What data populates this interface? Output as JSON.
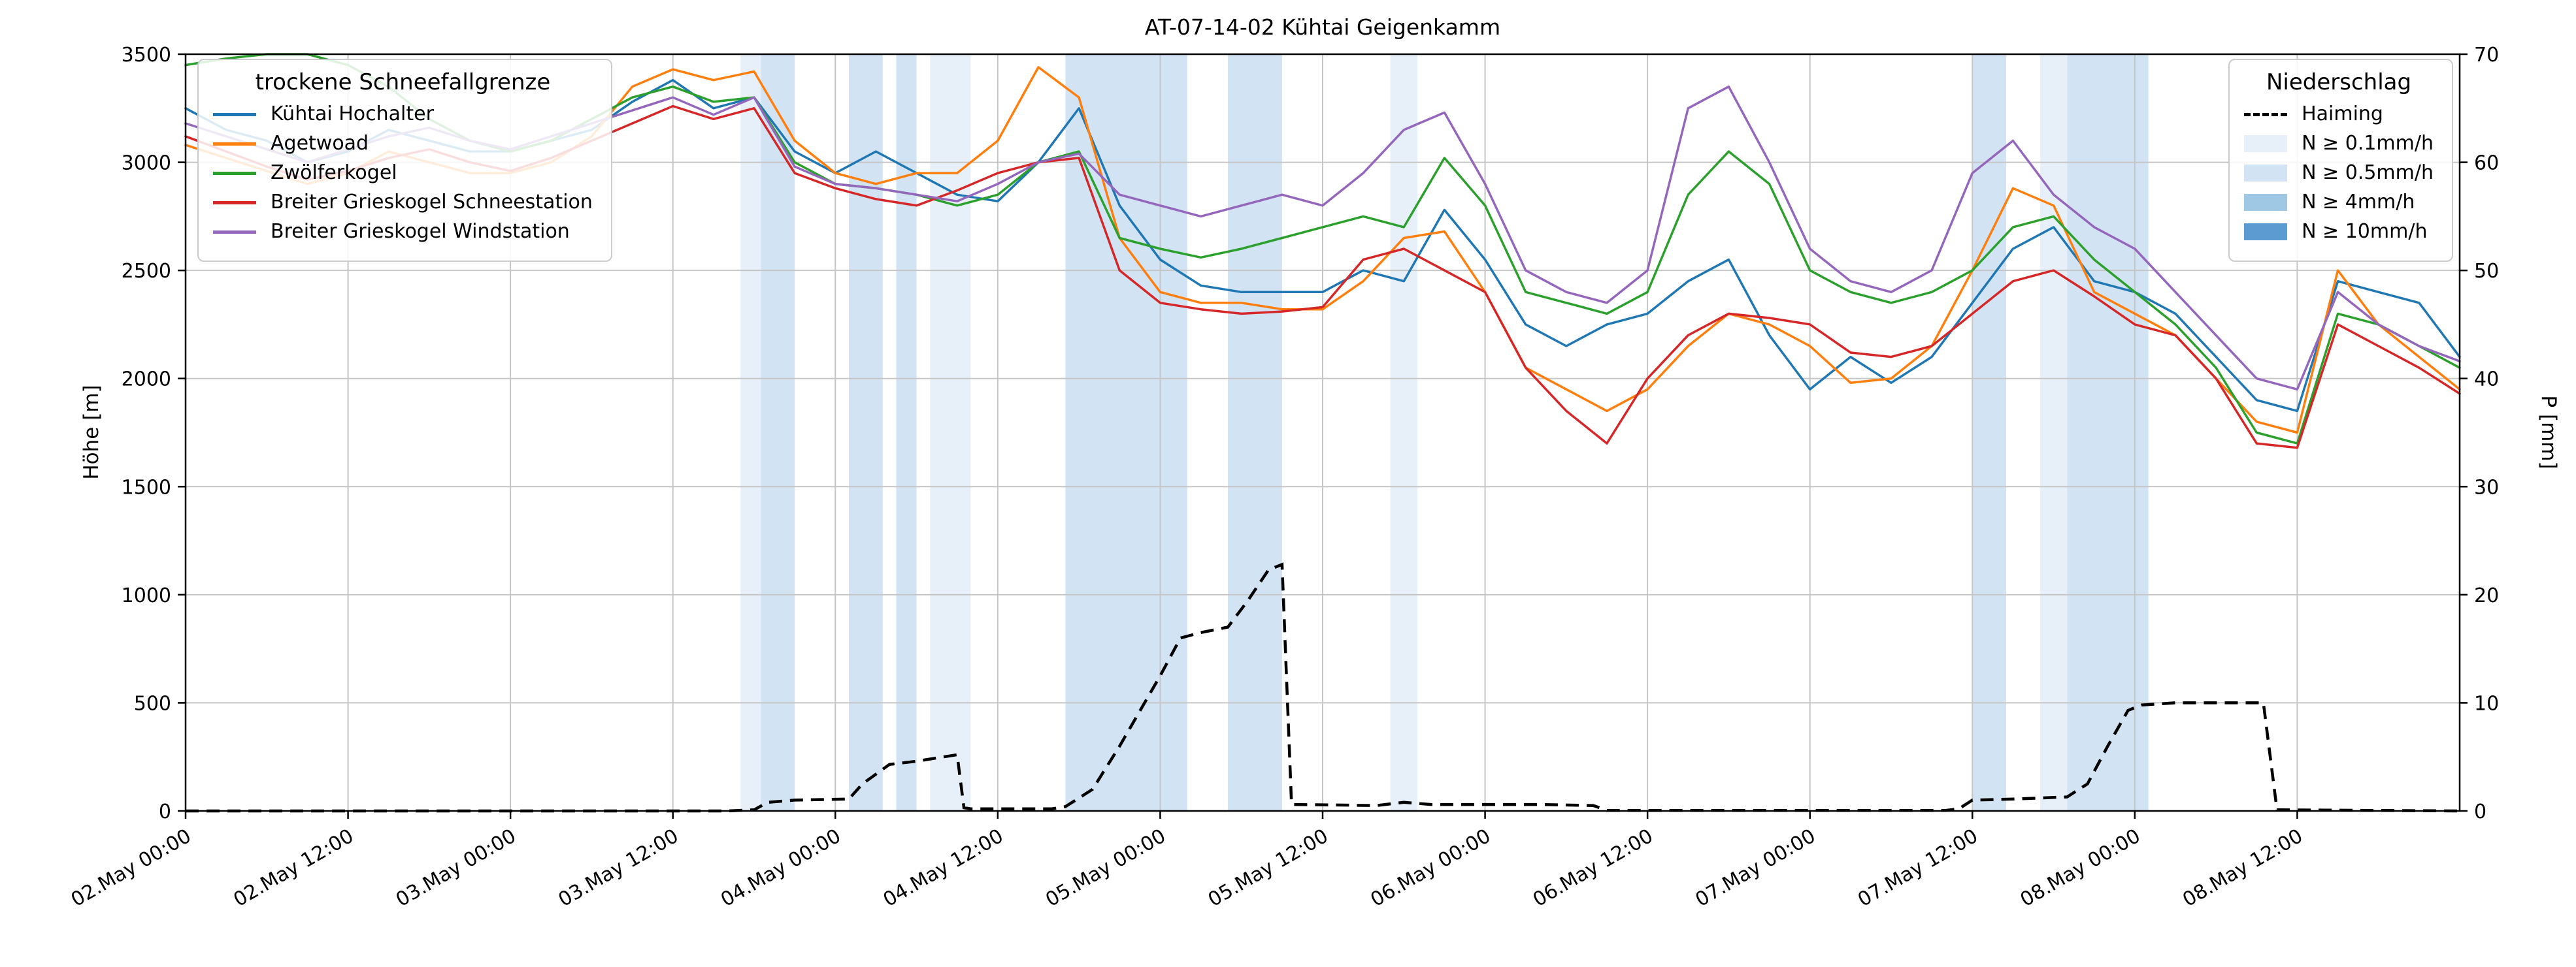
{
  "chart_data": {
    "type": "line",
    "title": "AT-07-14-02 Kühtai Geigenkamm",
    "ylabel_left": "Höhe [m]",
    "ylabel_right": "P [mm]",
    "x_origin": "02.May 00:00",
    "x_unit": "hours",
    "x_range_hours": [
      0,
      168
    ],
    "x_step_hours": 3,
    "ylim_left": [
      0,
      3500
    ],
    "ylim_right": [
      0,
      70
    ],
    "y_left_ticks": [
      0,
      500,
      1000,
      1500,
      2000,
      2500,
      3000,
      3500
    ],
    "y_right_ticks": [
      0,
      10,
      20,
      30,
      40,
      50,
      60,
      70
    ],
    "x_ticks_hours": [
      0,
      12,
      24,
      36,
      48,
      60,
      72,
      84,
      96,
      108,
      120,
      132,
      144,
      156
    ],
    "x_tick_labels": [
      "02.May 00:00",
      "02.May 12:00",
      "03.May 00:00",
      "03.May 12:00",
      "04.May 00:00",
      "04.May 12:00",
      "05.May 00:00",
      "05.May 12:00",
      "06.May 00:00",
      "06.May 12:00",
      "07.May 00:00",
      "07.May 12:00",
      "08.May 00:00",
      "08.May 12:00"
    ],
    "series": [
      {
        "name": "Kühtai Hochalter",
        "color": "#1f77b4",
        "values": [
          3250,
          3150,
          3100,
          3000,
          3050,
          3150,
          3100,
          3050,
          3050,
          3100,
          3150,
          3280,
          3380,
          3250,
          3300,
          3050,
          2950,
          3050,
          2950,
          2850,
          2820,
          3000,
          3250,
          2800,
          2550,
          2430,
          2400,
          2400,
          2400,
          2500,
          2450,
          2780,
          2550,
          2250,
          2150,
          2250,
          2300,
          2450,
          2550,
          2200,
          1950,
          2100,
          1980,
          2100,
          2350,
          2600,
          2700,
          2450,
          2400,
          2300,
          2100,
          1900,
          1850,
          2450,
          2400,
          2350,
          2100
        ]
      },
      {
        "name": "Agetwoad",
        "color": "#ff7f0e",
        "values": [
          3080,
          3020,
          2960,
          2900,
          2950,
          3050,
          3000,
          2950,
          2950,
          3000,
          3120,
          3350,
          3430,
          3380,
          3420,
          3100,
          2950,
          2900,
          2950,
          2950,
          3100,
          3440,
          3300,
          2650,
          2400,
          2350,
          2350,
          2320,
          2320,
          2450,
          2650,
          2680,
          2400,
          2050,
          1950,
          1850,
          1950,
          2150,
          2300,
          2250,
          2150,
          1980,
          2000,
          2150,
          2500,
          2880,
          2800,
          2400,
          2300,
          2200,
          2000,
          1800,
          1750,
          2500,
          2250,
          2100,
          1950
        ]
      },
      {
        "name": "Zwölferkogel",
        "color": "#2ca02c",
        "values": [
          3450,
          3480,
          3500,
          3500,
          3450,
          3350,
          3200,
          3100,
          3050,
          3100,
          3200,
          3300,
          3350,
          3280,
          3300,
          3000,
          2900,
          2880,
          2850,
          2800,
          2850,
          3000,
          3050,
          2650,
          2600,
          2560,
          2600,
          2650,
          2700,
          2750,
          2700,
          3020,
          2800,
          2400,
          2350,
          2300,
          2400,
          2850,
          3050,
          2900,
          2500,
          2400,
          2350,
          2400,
          2500,
          2700,
          2750,
          2550,
          2400,
          2250,
          2050,
          1750,
          1700,
          2300,
          2250,
          2150,
          2050
        ]
      },
      {
        "name": "Breiter Grieskogel Schneestation",
        "color": "#d62728",
        "values": [
          3120,
          3050,
          2980,
          2920,
          2960,
          3020,
          3060,
          3000,
          2960,
          3020,
          3100,
          3180,
          3260,
          3200,
          3250,
          2950,
          2880,
          2830,
          2800,
          2870,
          2950,
          3000,
          3020,
          2500,
          2350,
          2320,
          2300,
          2310,
          2330,
          2550,
          2600,
          2500,
          2400,
          2050,
          1850,
          1700,
          2000,
          2200,
          2300,
          2280,
          2250,
          2120,
          2100,
          2150,
          2300,
          2450,
          2500,
          2380,
          2250,
          2200,
          2000,
          1700,
          1680,
          2250,
          2150,
          2050,
          1930
        ]
      },
      {
        "name": "Breiter Grieskogel Windstation",
        "color": "#9467bd",
        "values": [
          3180,
          3120,
          3060,
          3000,
          3060,
          3120,
          3160,
          3100,
          3060,
          3120,
          3180,
          3240,
          3300,
          3220,
          3300,
          2980,
          2900,
          2880,
          2850,
          2820,
          2900,
          3000,
          3040,
          2850,
          2800,
          2750,
          2800,
          2850,
          2800,
          2950,
          3150,
          3230,
          2900,
          2500,
          2400,
          2350,
          2500,
          3250,
          3350,
          3000,
          2600,
          2450,
          2400,
          2500,
          2950,
          3100,
          2850,
          2700,
          2600,
          2400,
          2200,
          2000,
          1950,
          2400,
          2250,
          2150,
          2080
        ]
      }
    ],
    "haiming_precip_mm": [
      [
        0,
        0
      ],
      [
        40,
        0
      ],
      [
        42,
        0.1
      ],
      [
        43,
        0.8
      ],
      [
        45,
        1.0
      ],
      [
        49,
        1.1
      ],
      [
        50,
        2.5
      ],
      [
        52,
        4.3
      ],
      [
        54,
        4.6
      ],
      [
        55,
        4.8
      ],
      [
        57,
        5.2
      ],
      [
        57.5,
        0.3
      ],
      [
        58,
        0.2
      ],
      [
        64,
        0.2
      ],
      [
        65,
        0.4
      ],
      [
        67,
        2
      ],
      [
        69,
        6
      ],
      [
        72,
        12.5
      ],
      [
        73.5,
        16
      ],
      [
        75,
        16.5
      ],
      [
        77,
        17
      ],
      [
        78.5,
        19.5
      ],
      [
        80,
        22.3
      ],
      [
        81,
        22.8
      ],
      [
        81.7,
        0.6
      ],
      [
        88,
        0.5
      ],
      [
        90,
        0.8
      ],
      [
        92,
        0.6
      ],
      [
        100,
        0.6
      ],
      [
        104,
        0.5
      ],
      [
        105,
        0.05
      ],
      [
        130,
        0.05
      ],
      [
        131,
        0.2
      ],
      [
        132,
        1.0
      ],
      [
        135,
        1.1
      ],
      [
        139,
        1.3
      ],
      [
        140.5,
        2.5
      ],
      [
        142,
        6
      ],
      [
        143.5,
        9.3
      ],
      [
        144.5,
        9.8
      ],
      [
        147,
        10
      ],
      [
        153.5,
        10
      ],
      [
        154.5,
        0.1
      ],
      [
        168,
        0
      ]
    ],
    "precip_bands": [
      {
        "from": 41,
        "to": 42.5,
        "level": "0.1"
      },
      {
        "from": 42.5,
        "to": 45,
        "level": "0.5"
      },
      {
        "from": 49,
        "to": 51.5,
        "level": "0.5"
      },
      {
        "from": 52.5,
        "to": 54,
        "level": "0.5"
      },
      {
        "from": 55,
        "to": 58,
        "level": "0.1"
      },
      {
        "from": 65,
        "to": 74,
        "level": "0.5"
      },
      {
        "from": 77,
        "to": 81,
        "level": "0.5"
      },
      {
        "from": 89,
        "to": 91,
        "level": "0.1"
      },
      {
        "from": 132,
        "to": 134.5,
        "level": "0.5"
      },
      {
        "from": 137,
        "to": 139,
        "level": "0.1"
      },
      {
        "from": 139,
        "to": 145,
        "level": "0.5"
      }
    ],
    "band_colors": {
      "0.1": "#e7f0f9",
      "0.5": "#d2e3f3",
      "4": "#9fc8e4",
      "10": "#5b9bd1"
    },
    "grid": true
  },
  "legend_lines": {
    "title": "trockene Schneefallgrenze"
  },
  "legend_precip": {
    "title": "Niederschlag",
    "items": [
      {
        "label": "Haiming",
        "swatch": "dashed"
      },
      {
        "label": "N ≥ 0.1mm/h",
        "swatch": "0.1"
      },
      {
        "label": "N ≥ 0.5mm/h",
        "swatch": "0.5"
      },
      {
        "label": "N ≥ 4mm/h",
        "swatch": "4"
      },
      {
        "label": "N ≥ 10mm/h",
        "swatch": "10"
      }
    ]
  }
}
